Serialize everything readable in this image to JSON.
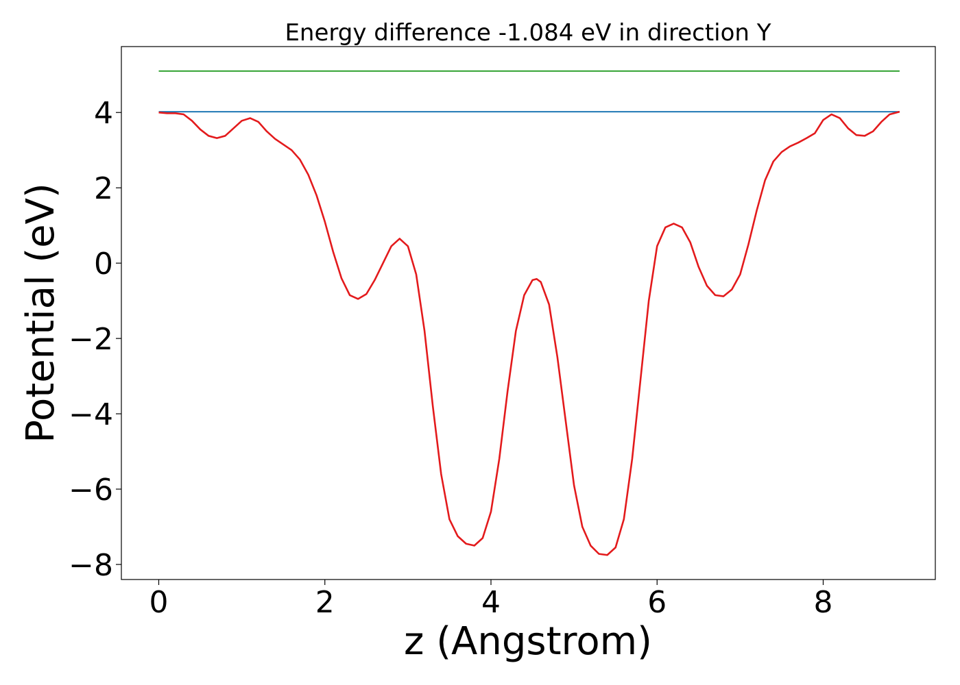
{
  "chart_data": {
    "type": "line",
    "title": "Energy difference -1.084 eV in direction Y",
    "xlabel": "z (Angstrom)",
    "ylabel": "Potential (eV)",
    "xlim": [
      -0.45,
      9.35
    ],
    "ylim": [
      -8.4,
      5.75
    ],
    "xticks": [
      0,
      2,
      4,
      6,
      8
    ],
    "xtick_labels": [
      "0",
      "2",
      "4",
      "6",
      "8"
    ],
    "yticks": [
      4,
      2,
      0,
      -2,
      -4,
      -6,
      -8
    ],
    "ytick_labels": [
      "4",
      "2",
      "0",
      "−2",
      "−4",
      "−6",
      "−8"
    ],
    "grid": false,
    "series": [
      {
        "color": "#2ca02c",
        "points": [
          [
            0,
            5.1
          ],
          [
            8.92,
            5.1
          ]
        ]
      },
      {
        "color": "#1f77b4",
        "points": [
          [
            0,
            4.02
          ],
          [
            8.92,
            4.02
          ]
        ]
      },
      {
        "color": "#e31a1c",
        "points": [
          [
            0.0,
            4.0
          ],
          [
            0.1,
            3.98
          ],
          [
            0.2,
            3.98
          ],
          [
            0.3,
            3.95
          ],
          [
            0.4,
            3.78
          ],
          [
            0.5,
            3.55
          ],
          [
            0.6,
            3.38
          ],
          [
            0.7,
            3.32
          ],
          [
            0.8,
            3.38
          ],
          [
            0.9,
            3.58
          ],
          [
            1.0,
            3.78
          ],
          [
            1.1,
            3.85
          ],
          [
            1.2,
            3.75
          ],
          [
            1.3,
            3.5
          ],
          [
            1.4,
            3.3
          ],
          [
            1.5,
            3.15
          ],
          [
            1.6,
            3.0
          ],
          [
            1.7,
            2.75
          ],
          [
            1.8,
            2.35
          ],
          [
            1.9,
            1.8
          ],
          [
            2.0,
            1.1
          ],
          [
            2.1,
            0.3
          ],
          [
            2.2,
            -0.4
          ],
          [
            2.3,
            -0.85
          ],
          [
            2.4,
            -0.95
          ],
          [
            2.5,
            -0.82
          ],
          [
            2.6,
            -0.45
          ],
          [
            2.7,
            0.0
          ],
          [
            2.8,
            0.45
          ],
          [
            2.9,
            0.65
          ],
          [
            3.0,
            0.45
          ],
          [
            3.1,
            -0.3
          ],
          [
            3.2,
            -1.8
          ],
          [
            3.3,
            -3.8
          ],
          [
            3.4,
            -5.6
          ],
          [
            3.5,
            -6.8
          ],
          [
            3.6,
            -7.25
          ],
          [
            3.7,
            -7.45
          ],
          [
            3.8,
            -7.5
          ],
          [
            3.9,
            -7.3
          ],
          [
            4.0,
            -6.6
          ],
          [
            4.1,
            -5.2
          ],
          [
            4.2,
            -3.4
          ],
          [
            4.3,
            -1.8
          ],
          [
            4.4,
            -0.85
          ],
          [
            4.5,
            -0.45
          ],
          [
            4.55,
            -0.42
          ],
          [
            4.6,
            -0.5
          ],
          [
            4.7,
            -1.1
          ],
          [
            4.8,
            -2.5
          ],
          [
            4.9,
            -4.2
          ],
          [
            5.0,
            -5.9
          ],
          [
            5.1,
            -7.0
          ],
          [
            5.2,
            -7.5
          ],
          [
            5.3,
            -7.72
          ],
          [
            5.4,
            -7.75
          ],
          [
            5.5,
            -7.55
          ],
          [
            5.6,
            -6.8
          ],
          [
            5.7,
            -5.2
          ],
          [
            5.8,
            -3.1
          ],
          [
            5.9,
            -1.0
          ],
          [
            6.0,
            0.45
          ],
          [
            6.1,
            0.95
          ],
          [
            6.2,
            1.05
          ],
          [
            6.3,
            0.95
          ],
          [
            6.4,
            0.55
          ],
          [
            6.5,
            -0.1
          ],
          [
            6.6,
            -0.6
          ],
          [
            6.7,
            -0.85
          ],
          [
            6.8,
            -0.88
          ],
          [
            6.9,
            -0.7
          ],
          [
            7.0,
            -0.3
          ],
          [
            7.1,
            0.5
          ],
          [
            7.2,
            1.4
          ],
          [
            7.3,
            2.2
          ],
          [
            7.4,
            2.7
          ],
          [
            7.5,
            2.95
          ],
          [
            7.6,
            3.1
          ],
          [
            7.7,
            3.2
          ],
          [
            7.8,
            3.32
          ],
          [
            7.9,
            3.45
          ],
          [
            8.0,
            3.8
          ],
          [
            8.1,
            3.95
          ],
          [
            8.2,
            3.85
          ],
          [
            8.3,
            3.58
          ],
          [
            8.4,
            3.4
          ],
          [
            8.5,
            3.38
          ],
          [
            8.6,
            3.5
          ],
          [
            8.7,
            3.75
          ],
          [
            8.8,
            3.95
          ],
          [
            8.92,
            4.02
          ]
        ]
      }
    ]
  }
}
